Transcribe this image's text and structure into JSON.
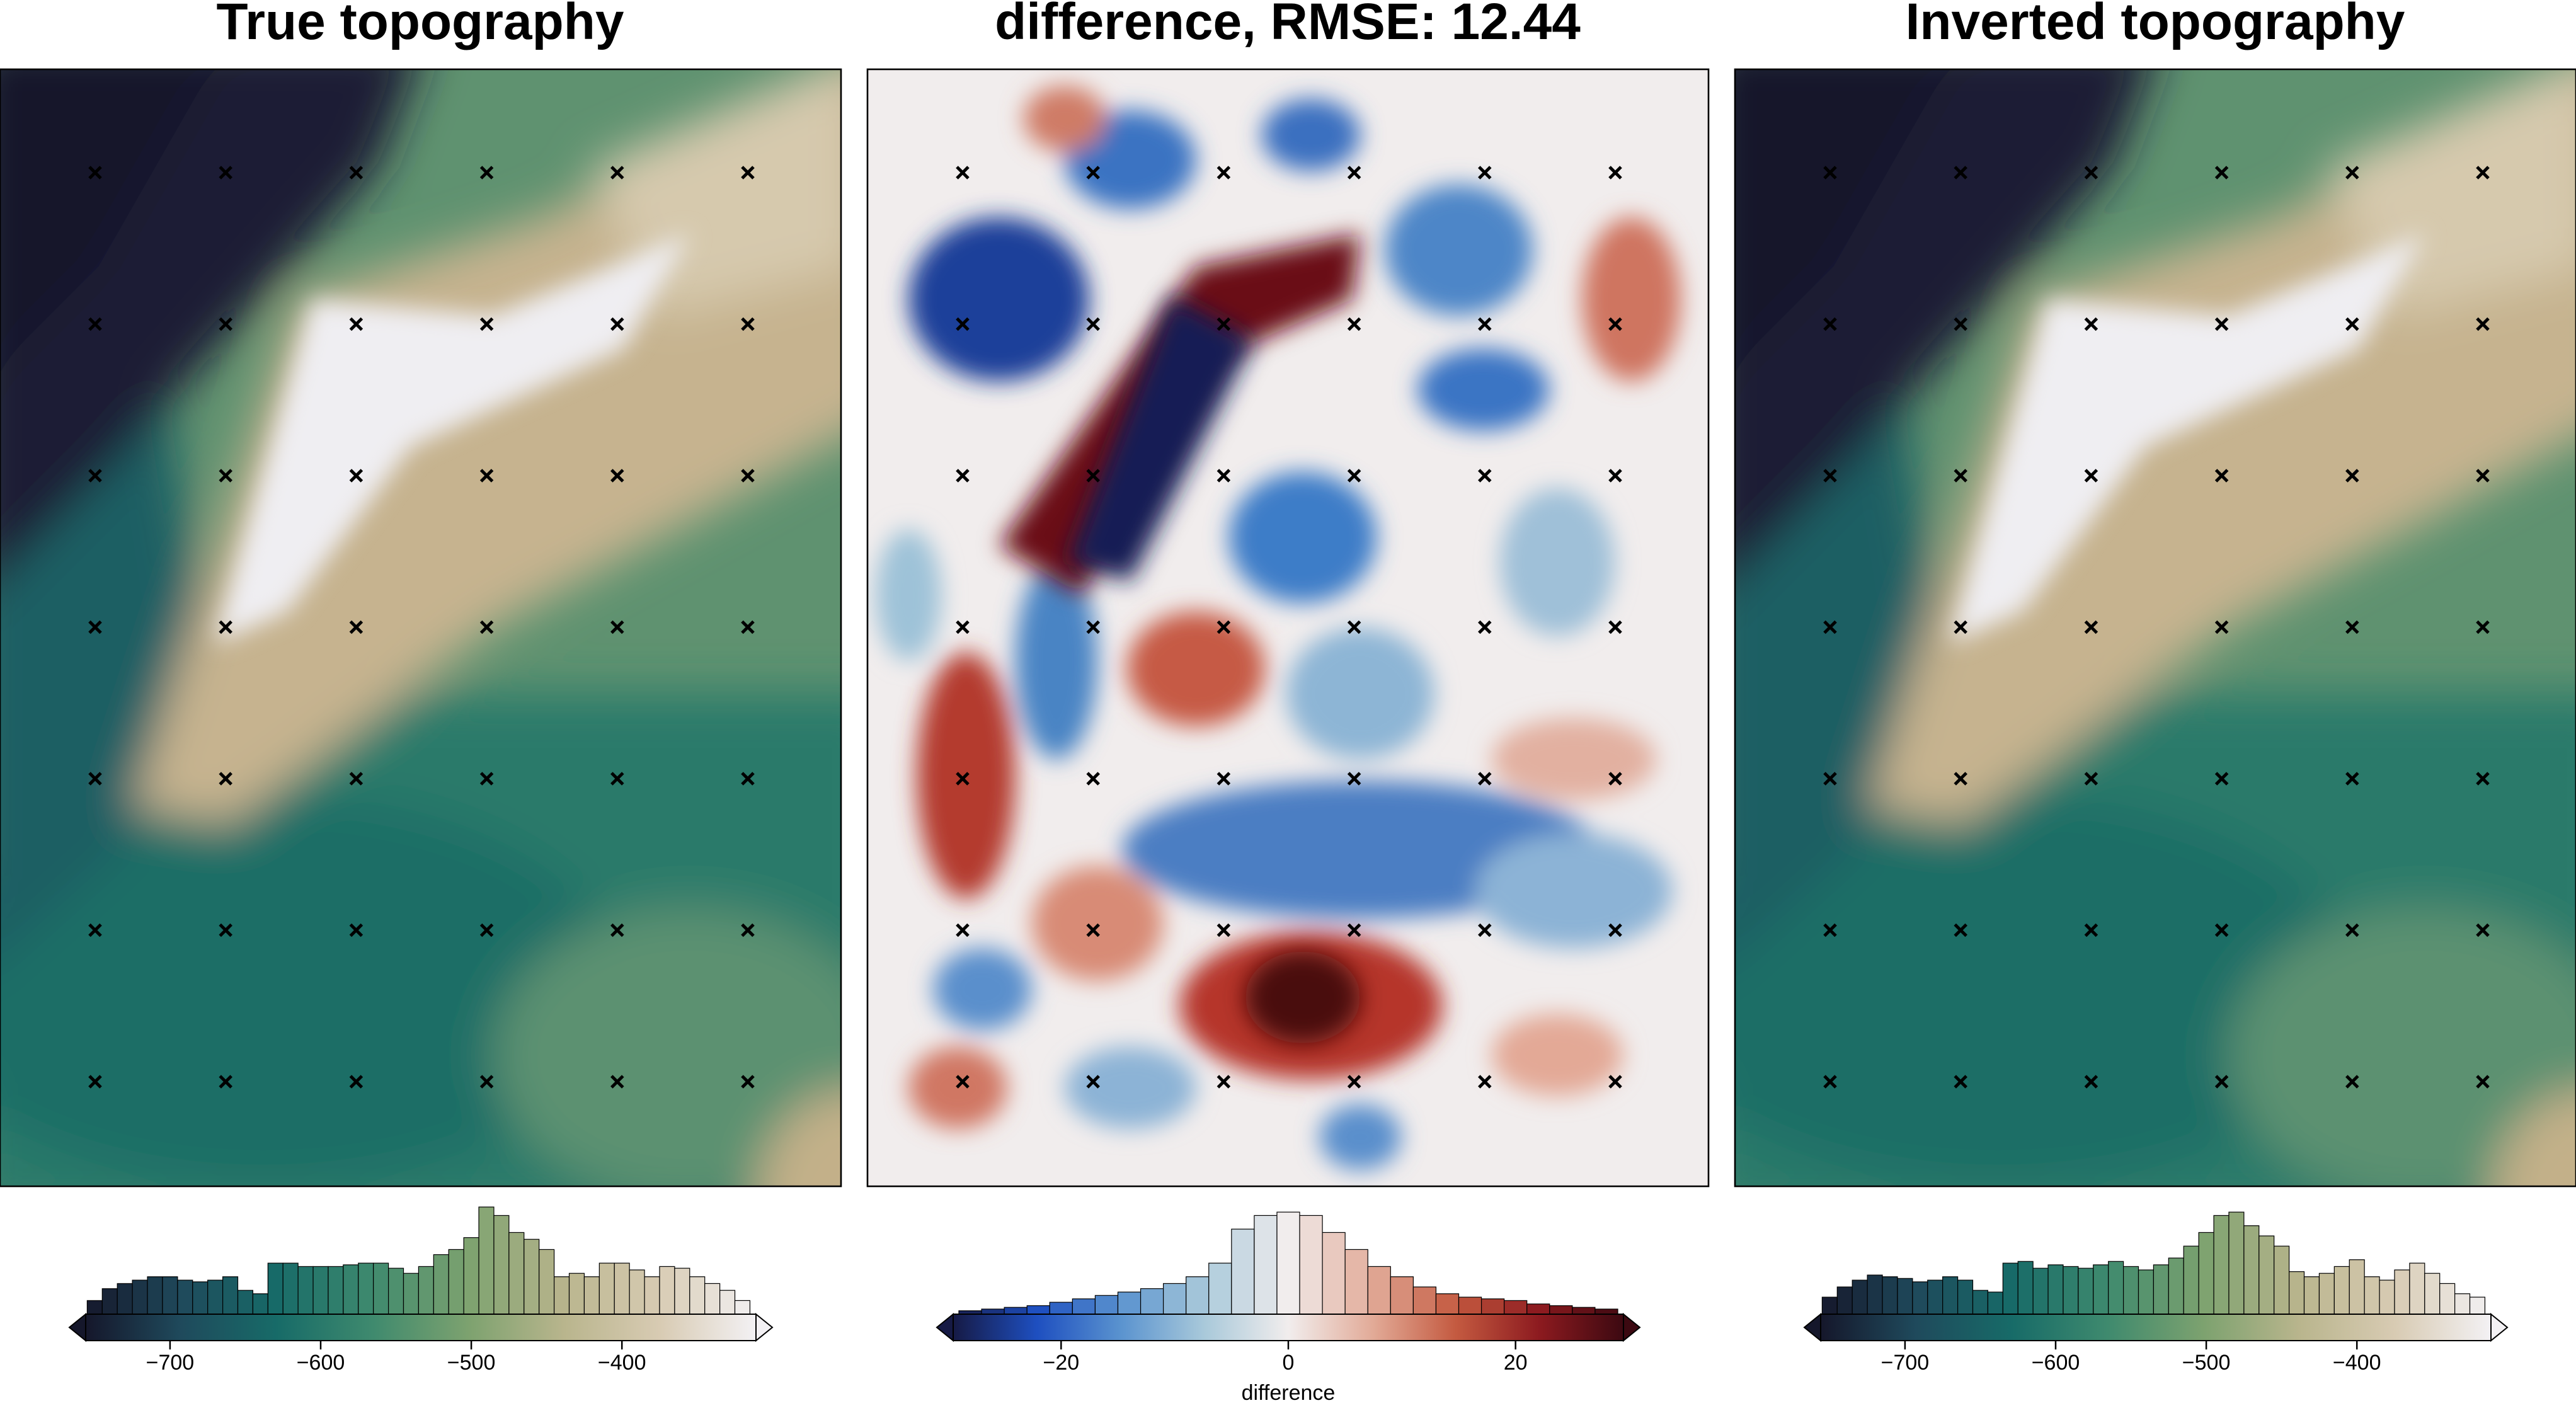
{
  "chart_data": [
    {
      "type": "histogram",
      "title": "True topography",
      "bins": [
        -755,
        -745,
        -735,
        -725,
        -715,
        -705,
        -695,
        -685,
        -675,
        -665,
        -655,
        -645,
        -635,
        -625,
        -615,
        -605,
        -595,
        -585,
        -575,
        -565,
        -555,
        -545,
        -535,
        -525,
        -515,
        -505,
        -495,
        -485,
        -475,
        -465,
        -455,
        -445,
        -435,
        -425,
        -415,
        -405,
        -395,
        -385,
        -375,
        -365,
        -355,
        -345,
        -335,
        -325,
        -315
      ],
      "values": [
        8,
        15,
        18,
        20,
        22,
        22,
        20,
        19,
        20,
        22,
        14,
        12,
        30,
        30,
        28,
        28,
        28,
        29,
        30,
        30,
        27,
        24,
        28,
        35,
        38,
        45,
        63,
        58,
        48,
        44,
        38,
        22,
        24,
        22,
        30,
        30,
        26,
        22,
        28,
        27,
        22,
        18,
        14,
        8
      ],
      "xlim": [
        -756,
        -311
      ],
      "xticks": [
        {
          "value": -700,
          "label": "−700"
        },
        {
          "value": -600,
          "label": "−600"
        },
        {
          "value": -500,
          "label": "−500"
        },
        {
          "value": -400,
          "label": "−400"
        }
      ],
      "colors": [
        "#15172b",
        "#1f4a5c",
        "#176b68",
        "#3f8a6e",
        "#7da26f",
        "#b9b58d",
        "#d8cbb3",
        "#f3f1f4"
      ],
      "extend": "both"
    },
    {
      "type": "histogram",
      "title": "difference, RMSE: 12.44",
      "xlabel": "difference",
      "bins": [
        -29,
        -27,
        -25,
        -23,
        -21,
        -19,
        -17,
        -15,
        -13,
        -11,
        -9,
        -7,
        -5,
        -3,
        -1,
        1,
        3,
        5,
        7,
        9,
        11,
        13,
        15,
        17,
        19,
        21,
        23,
        25,
        27,
        29
      ],
      "values": [
        2,
        3,
        4,
        5,
        7,
        9,
        11,
        13,
        15,
        18,
        22,
        30,
        50,
        58,
        60,
        58,
        48,
        38,
        28,
        22,
        16,
        12,
        10,
        9,
        8,
        6,
        5,
        4,
        3
      ],
      "xlim": [
        -29.5,
        29.5
      ],
      "xticks": [
        {
          "value": -20,
          "label": "−20"
        },
        0,
        20
      ],
      "colors": [
        "#161a45",
        "#1e4fc0",
        "#5a93cf",
        "#a9c9da",
        "#f1eded",
        "#e2ab98",
        "#c45a40",
        "#8c1a1f",
        "#3c0911"
      ],
      "extend": "both"
    },
    {
      "type": "histogram",
      "title": "Inverted topography",
      "bins": [
        -755,
        -745,
        -735,
        -725,
        -715,
        -705,
        -695,
        -685,
        -675,
        -665,
        -655,
        -645,
        -635,
        -625,
        -615,
        -605,
        -595,
        -585,
        -575,
        -565,
        -555,
        -545,
        -535,
        -525,
        -515,
        -505,
        -495,
        -485,
        -475,
        -465,
        -455,
        -445,
        -435,
        -425,
        -415,
        -405,
        -395,
        -385,
        -375,
        -365,
        -355,
        -345,
        -335,
        -325,
        -315
      ],
      "values": [
        10,
        16,
        20,
        23,
        22,
        21,
        19,
        20,
        22,
        20,
        14,
        13,
        30,
        31,
        27,
        29,
        28,
        27,
        29,
        31,
        28,
        26,
        29,
        33,
        40,
        48,
        58,
        60,
        52,
        46,
        40,
        25,
        22,
        24,
        28,
        32,
        22,
        20,
        26,
        30,
        24,
        18,
        12,
        10
      ],
      "xlim": [
        -756,
        -311
      ],
      "xticks": [
        {
          "value": -700,
          "label": "−700"
        },
        {
          "value": -600,
          "label": "−600"
        },
        {
          "value": -500,
          "label": "−500"
        },
        {
          "value": -400,
          "label": "−400"
        }
      ],
      "colors": [
        "#15172b",
        "#1f4a5c",
        "#176b68",
        "#3f8a6e",
        "#7da26f",
        "#b9b58d",
        "#d8cbb3",
        "#f3f1f4"
      ],
      "extend": "both"
    }
  ]
}
